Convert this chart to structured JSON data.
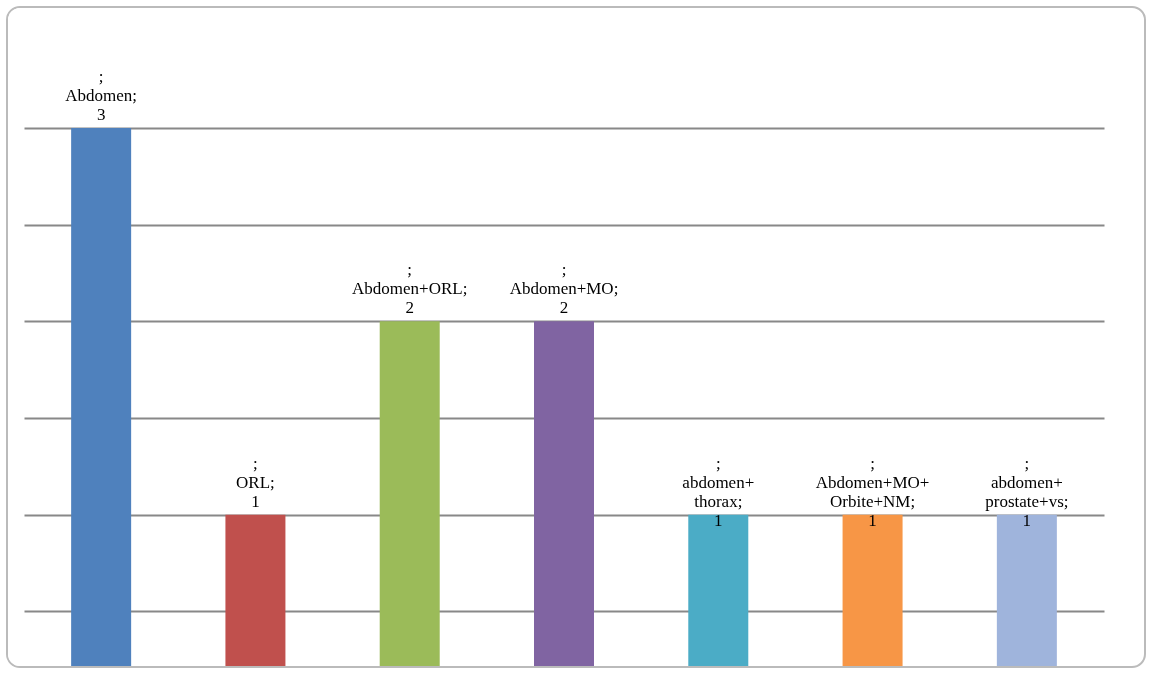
{
  "chart_data": {
    "type": "bar",
    "categories": [
      null,
      null,
      null,
      null,
      null,
      null,
      null
    ],
    "values": [
      3,
      1,
      2,
      2,
      1,
      1,
      1
    ],
    "colors": [
      "#4f81bd",
      "#c0504d",
      "#9bbb59",
      "#8064a2",
      "#4bacc6",
      "#f79646",
      "#9fb4dc"
    ],
    "value_labels": [
      "; Abdomen; 3",
      "; ORL; 1",
      "; Abdomen+ORL; 2",
      "; Abdomen+MO; 2",
      "; abdomen+thorax; 1",
      "; Abdomen+MO+Orbite+NM; 1",
      "; abdomen+prostate+vs; 1"
    ],
    "ylim": [
      0,
      3
    ],
    "grid": "y",
    "tick_labels": false
  }
}
